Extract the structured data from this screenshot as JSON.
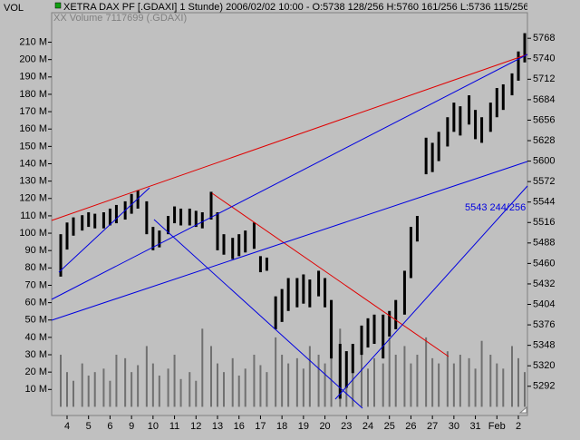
{
  "chart_data": {
    "type": "ohlc",
    "title": "XETRA DAX PF [.GDAXI]  1 Stunde) 2006/02/02 10:00 - O:5738 128/256 H:5760 161/256 L:5736 115/256",
    "subtitle": "XX Volume 7117699 (.GDAXI)",
    "y2_axis_label": "VOL",
    "annotation": "5543 244/256",
    "categories": [
      "4",
      "5",
      "6",
      "9",
      "10",
      "11",
      "12",
      "13",
      "16",
      "17",
      "18",
      "19",
      "20",
      "23",
      "24",
      "25",
      "26",
      "27",
      "30",
      "31",
      "Feb",
      "2"
    ],
    "high": [
      [
        5500,
        5516,
        5523
      ],
      [
        5526,
        5530,
        5528
      ],
      [
        5530,
        5535,
        5540
      ],
      [
        5545,
        5555,
        5560
      ],
      [
        5545,
        5510,
        5505
      ],
      [
        5525,
        5538,
        5535
      ],
      [
        5535,
        5532,
        5530
      ],
      [
        5558,
        5530,
        5500
      ],
      [
        5495,
        5500,
        5505
      ],
      [
        5516,
        5470,
        5468
      ],
      [
        5415,
        5425,
        5440
      ],
      [
        5440,
        5445,
        5438
      ],
      [
        5450,
        5440,
        5410
      ],
      [
        5350,
        5340,
        5350
      ],
      [
        5375,
        5385,
        5390
      ],
      [
        5390,
        5395,
        5410
      ],
      [
        5450,
        5510,
        5525
      ],
      [
        5632,
        5625,
        5640
      ],
      [
        5660,
        5680,
        5675
      ],
      [
        5690,
        5670,
        5660
      ],
      [
        5680,
        5700,
        5705
      ],
      [
        5720,
        5750,
        5775
      ]
    ],
    "low": [
      [
        5442,
        5479,
        5498
      ],
      [
        5505,
        5510,
        5508
      ],
      [
        5508,
        5512,
        5515
      ],
      [
        5520,
        5528,
        5535
      ],
      [
        5500,
        5478,
        5482
      ],
      [
        5500,
        5515,
        5512
      ],
      [
        5512,
        5510,
        5508
      ],
      [
        5520,
        5478,
        5472
      ],
      [
        5466,
        5470,
        5475
      ],
      [
        5480,
        5448,
        5450
      ],
      [
        5370,
        5380,
        5395
      ],
      [
        5400,
        5405,
        5400
      ],
      [
        5415,
        5400,
        5330
      ],
      [
        5275,
        5290,
        5310
      ],
      [
        5335,
        5345,
        5350
      ],
      [
        5330,
        5360,
        5370
      ],
      [
        5390,
        5440,
        5490
      ],
      [
        5582,
        5585,
        5600
      ],
      [
        5620,
        5640,
        5635
      ],
      [
        5650,
        5630,
        5625
      ],
      [
        5640,
        5660,
        5670
      ],
      [
        5690,
        5710,
        5735
      ]
    ],
    "volume": [
      [
        30000000,
        20000000,
        15000000
      ],
      [
        25000000,
        18000000,
        20000000
      ],
      [
        22000000,
        15000000,
        30000000
      ],
      [
        28000000,
        20000000,
        24000000
      ],
      [
        35000000,
        25000000,
        18000000
      ],
      [
        22000000,
        30000000,
        16000000
      ],
      [
        20000000,
        15000000,
        45000000
      ],
      [
        35000000,
        25000000,
        20000000
      ],
      [
        28000000,
        18000000,
        22000000
      ],
      [
        30000000,
        24000000,
        20000000
      ],
      [
        40000000,
        30000000,
        25000000
      ],
      [
        28000000,
        22000000,
        35000000
      ],
      [
        30000000,
        25000000,
        38000000
      ],
      [
        45000000,
        30000000,
        25000000
      ],
      [
        30000000,
        22000000,
        28000000
      ],
      [
        25000000,
        40000000,
        30000000
      ],
      [
        35000000,
        25000000,
        30000000
      ],
      [
        40000000,
        28000000,
        25000000
      ],
      [
        32000000,
        25000000,
        30000000
      ],
      [
        28000000,
        22000000,
        38000000
      ],
      [
        30000000,
        25000000,
        22000000
      ],
      [
        35000000,
        28000000,
        20000000
      ]
    ],
    "price_color": "#000000",
    "volume_color": "#707070",
    "ylim": [
      5252,
      5803
    ],
    "yticks": [
      5292,
      5320,
      5348,
      5376,
      5404,
      5432,
      5460,
      5488,
      5516,
      5544,
      5572,
      5600,
      5628,
      5656,
      5684,
      5712,
      5740,
      5768
    ],
    "y2lim": [
      -5000000,
      227000000
    ],
    "y2ticks": [
      {
        "value": 10000000,
        "label": "10 M"
      },
      {
        "value": 20000000,
        "label": "20 M"
      },
      {
        "value": 30000000,
        "label": "30 M"
      },
      {
        "value": 40000000,
        "label": "40 M"
      },
      {
        "value": 50000000,
        "label": "50 M"
      },
      {
        "value": 60000000,
        "label": "60 M"
      },
      {
        "value": 70000000,
        "label": "70 M"
      },
      {
        "value": 80000000,
        "label": "80 M"
      },
      {
        "value": 90000000,
        "label": "90 M"
      },
      {
        "value": 100000000,
        "label": "100 M"
      },
      {
        "value": 110000000,
        "label": "110 M"
      },
      {
        "value": 120000000,
        "label": "120 M"
      },
      {
        "value": 130000000,
        "label": "130 M"
      },
      {
        "value": 140000000,
        "label": "140 M"
      },
      {
        "value": 150000000,
        "label": "150 M"
      },
      {
        "value": 160000000,
        "label": "160 M"
      },
      {
        "value": 170000000,
        "label": "170 M"
      },
      {
        "value": 180000000,
        "label": "180 M"
      },
      {
        "value": 190000000,
        "label": "190 M"
      },
      {
        "value": 200000000,
        "label": "200 M"
      },
      {
        "value": 210000000,
        "label": "210 M"
      }
    ]
  }
}
